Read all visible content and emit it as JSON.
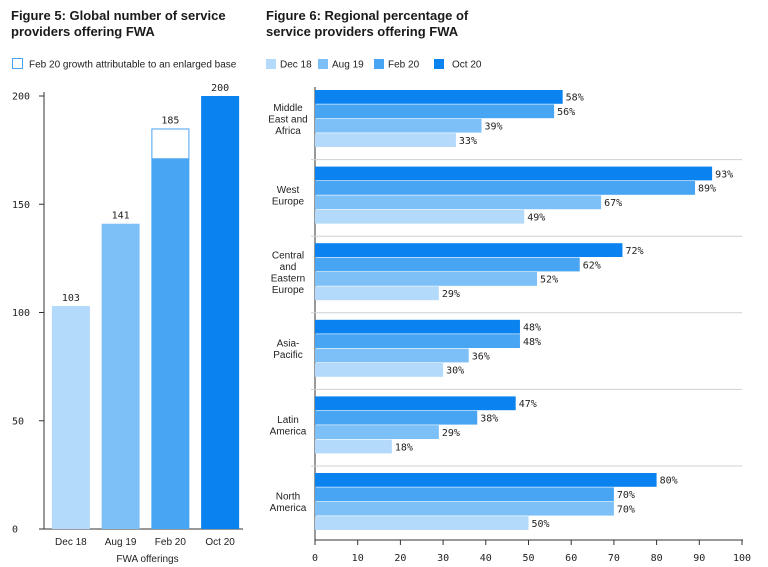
{
  "colors": {
    "dec18": "#b3dafb",
    "aug19": "#7dc0f8",
    "feb20": "#47a5f3",
    "oct20": "#0a83f0",
    "outline": "#4aa3ef",
    "axis": "#333333",
    "grid": "#d0d0d0"
  },
  "chart_data": [
    {
      "type": "bar",
      "title": "Figure 5: Global number of service providers offering FWA",
      "title_lines": [
        "Figure 5: Global number of service",
        "providers offering FWA"
      ],
      "legend": [
        "Feb 20 growth attributable to an enlarged base"
      ],
      "xlabel": "FWA offerings",
      "ylabel": "",
      "categories": [
        "Dec 18",
        "Aug 19",
        "Feb 20",
        "Oct 20"
      ],
      "values": [
        103,
        141,
        185,
        200
      ],
      "value_labels": [
        "103",
        "141",
        "185",
        "200"
      ],
      "enlarged_base_base": 171,
      "ylim": [
        0,
        200
      ],
      "yticks": [
        0,
        50,
        100,
        150,
        200
      ],
      "ytick_labels": [
        "0",
        "50",
        "100",
        "150",
        "200"
      ],
      "grid": false
    },
    {
      "type": "bar",
      "orientation": "horizontal",
      "title": "Figure 6: Regional percentage of service providers offering FWA",
      "title_lines": [
        "Figure 6: Regional percentage of",
        "service providers offering FWA"
      ],
      "legend_placement": "top",
      "series": [
        {
          "name": "Dec 18",
          "values": [
            33,
            49,
            29,
            30,
            18,
            50
          ]
        },
        {
          "name": "Aug 19",
          "values": [
            39,
            67,
            52,
            36,
            29,
            70
          ]
        },
        {
          "name": "Feb 20",
          "values": [
            56,
            89,
            62,
            48,
            38,
            70
          ]
        },
        {
          "name": "Oct 20",
          "values": [
            58,
            93,
            72,
            48,
            47,
            80
          ]
        }
      ],
      "categories": [
        [
          "Middle",
          "East and",
          "Africa"
        ],
        [
          "West",
          "Europe"
        ],
        [
          "Central",
          "and",
          "Eastern",
          "Europe"
        ],
        [
          "Asia-",
          "Pacific"
        ],
        [
          "Latin",
          "America"
        ],
        [
          "North",
          "America"
        ]
      ],
      "xlim": [
        0,
        100
      ],
      "xticks": [
        0,
        10,
        20,
        30,
        40,
        50,
        60,
        70,
        80,
        90,
        100
      ],
      "xtick_labels": [
        "0",
        "10",
        "20",
        "30",
        "40",
        "50",
        "60",
        "70",
        "80",
        "90",
        "100"
      ],
      "value_suffix": "%",
      "grid": false
    }
  ]
}
